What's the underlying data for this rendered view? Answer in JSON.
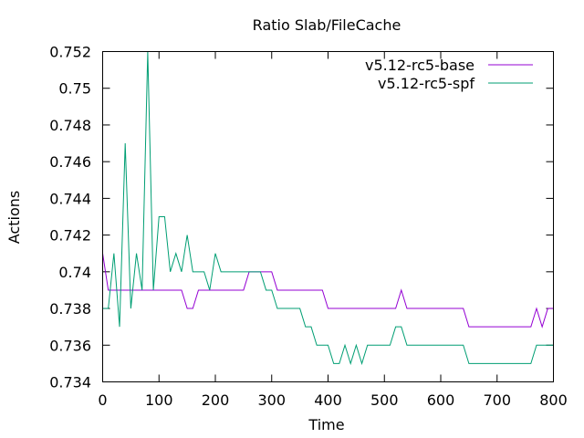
{
  "chart_data": {
    "type": "line",
    "title": "Ratio Slab/FileCache",
    "xlabel": "Time",
    "ylabel": "Actions",
    "xlim": [
      0,
      800
    ],
    "ylim": [
      0.734,
      0.752
    ],
    "xticks": [
      0,
      100,
      200,
      300,
      400,
      500,
      600,
      700,
      800
    ],
    "xtick_labels": [
      "0",
      "100",
      "200",
      "300",
      "400",
      "500",
      "600",
      "700",
      "800"
    ],
    "yticks": [
      0.734,
      0.736,
      0.738,
      0.74,
      0.742,
      0.744,
      0.746,
      0.748,
      0.75,
      0.752
    ],
    "ytick_labels": [
      "0.734",
      "0.736",
      "0.738",
      "0.74",
      "0.742",
      "0.744",
      "0.746",
      "0.748",
      "0.75",
      "0.752"
    ],
    "grid": false,
    "legend_position": "top-right",
    "series": [
      {
        "name": "v5.12-rc5-base",
        "color": "#9400d3",
        "x": [
          0,
          10,
          20,
          140,
          150,
          160,
          170,
          250,
          260,
          290,
          300,
          310,
          390,
          400,
          520,
          530,
          540,
          640,
          650,
          760,
          770,
          780,
          790,
          800
        ],
        "y": [
          0.741,
          0.739,
          0.739,
          0.739,
          0.738,
          0.738,
          0.739,
          0.739,
          0.74,
          0.74,
          0.74,
          0.739,
          0.739,
          0.738,
          0.738,
          0.739,
          0.738,
          0.738,
          0.737,
          0.737,
          0.738,
          0.737,
          0.738,
          0.738
        ]
      },
      {
        "name": "v5.12-rc5-spf",
        "color": "#009e73",
        "x": [
          0,
          10,
          20,
          30,
          40,
          50,
          60,
          70,
          80,
          90,
          100,
          110,
          120,
          130,
          140,
          150,
          160,
          170,
          180,
          190,
          200,
          210,
          220,
          230,
          240,
          250,
          260,
          270,
          280,
          290,
          300,
          310,
          320,
          330,
          340,
          350,
          360,
          370,
          380,
          390,
          400,
          410,
          420,
          430,
          440,
          450,
          460,
          470,
          480,
          490,
          500,
          510,
          520,
          530,
          540,
          550,
          560,
          570,
          580,
          590,
          600,
          610,
          620,
          630,
          640,
          650,
          660,
          670,
          680,
          690,
          700,
          710,
          720,
          730,
          740,
          750,
          760,
          770,
          780,
          790,
          800
        ],
        "y": [
          0.738,
          0.738,
          0.741,
          0.737,
          0.747,
          0.738,
          0.741,
          0.739,
          0.752,
          0.739,
          0.743,
          0.743,
          0.74,
          0.741,
          0.74,
          0.742,
          0.74,
          0.74,
          0.74,
          0.739,
          0.741,
          0.74,
          0.74,
          0.74,
          0.74,
          0.74,
          0.74,
          0.74,
          0.74,
          0.739,
          0.739,
          0.738,
          0.738,
          0.738,
          0.738,
          0.738,
          0.737,
          0.737,
          0.736,
          0.736,
          0.736,
          0.735,
          0.735,
          0.736,
          0.735,
          0.736,
          0.735,
          0.736,
          0.736,
          0.736,
          0.736,
          0.736,
          0.737,
          0.737,
          0.736,
          0.736,
          0.736,
          0.736,
          0.736,
          0.736,
          0.736,
          0.736,
          0.736,
          0.736,
          0.736,
          0.735,
          0.735,
          0.735,
          0.735,
          0.735,
          0.735,
          0.735,
          0.735,
          0.735,
          0.735,
          0.735,
          0.735,
          0.736,
          0.736,
          0.736,
          0.736
        ]
      }
    ]
  }
}
